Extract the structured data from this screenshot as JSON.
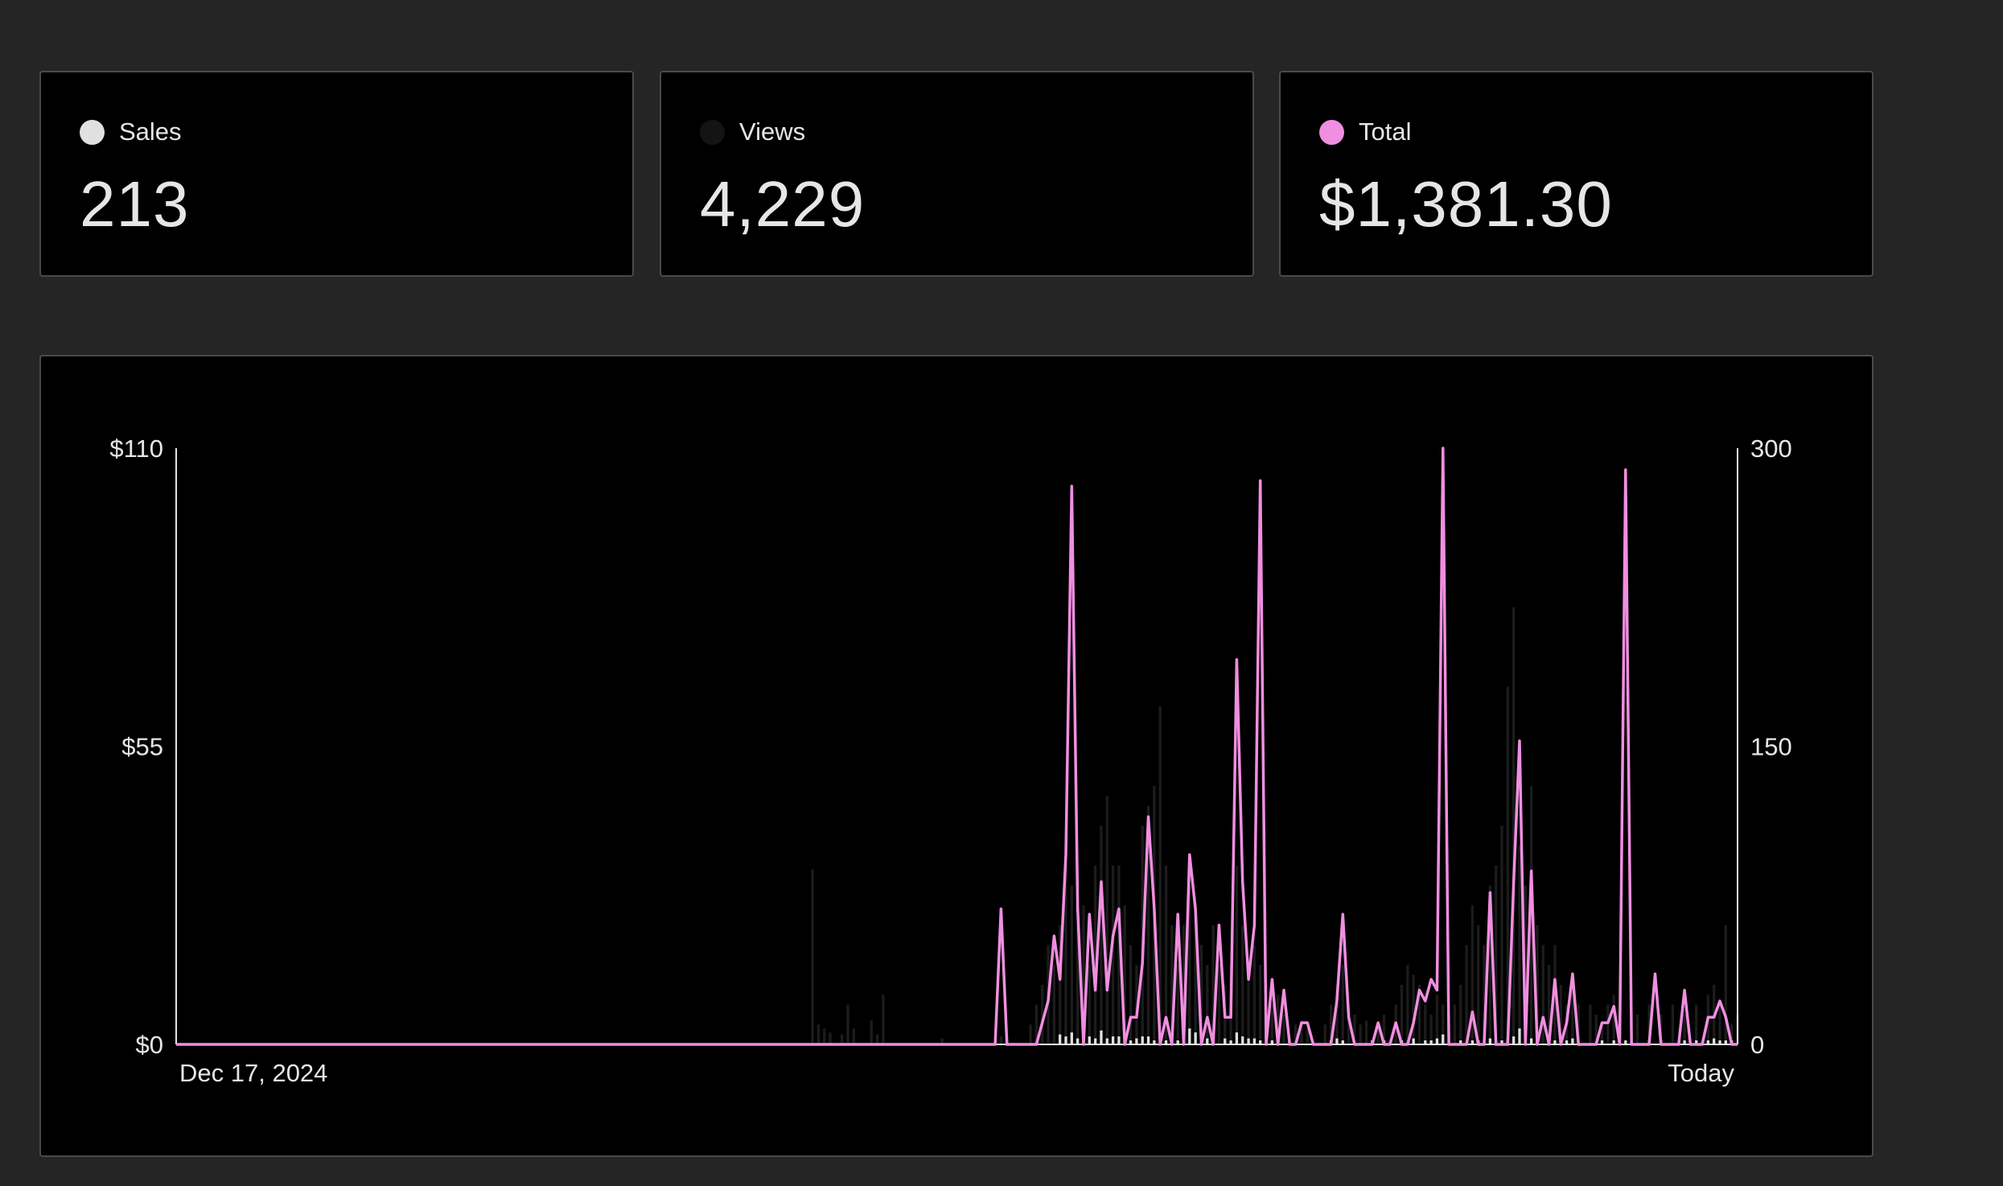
{
  "stats": [
    {
      "label": "Sales",
      "value": "213",
      "color": "#e0e0e0"
    },
    {
      "label": "Views",
      "value": "4,229",
      "color": "#141414"
    },
    {
      "label": "Total",
      "value": "$1,381.30",
      "color": "#f08ee0"
    }
  ],
  "chart_data": {
    "type": "line",
    "x_start_label": "Dec 17, 2024",
    "x_end_label": "Today",
    "points": 266,
    "left_axis": {
      "ticks": [
        "$0",
        "$55",
        "$110"
      ],
      "ylim": [
        0,
        110
      ],
      "grid": false
    },
    "right_axis": {
      "ticks": [
        "0",
        "150",
        "300"
      ],
      "ylim": [
        0,
        300
      ],
      "grid": false
    },
    "series": [
      {
        "name": "Total",
        "axis": "left",
        "kind": "line",
        "color": "#f08ee0",
        "points": [
          [
            0,
            0
          ],
          [
            139,
            0
          ],
          [
            140,
            25
          ],
          [
            141,
            0
          ],
          [
            146,
            0
          ],
          [
            148,
            8
          ],
          [
            149,
            20
          ],
          [
            150,
            12
          ],
          [
            151,
            35
          ],
          [
            152,
            103
          ],
          [
            153,
            25
          ],
          [
            154,
            0
          ],
          [
            155,
            24
          ],
          [
            156,
            10
          ],
          [
            157,
            30
          ],
          [
            158,
            10
          ],
          [
            159,
            20
          ],
          [
            160,
            25
          ],
          [
            161,
            0
          ],
          [
            162,
            5
          ],
          [
            163,
            5
          ],
          [
            164,
            15
          ],
          [
            165,
            42
          ],
          [
            166,
            25
          ],
          [
            167,
            0
          ],
          [
            168,
            5
          ],
          [
            169,
            0
          ],
          [
            170,
            24
          ],
          [
            171,
            0
          ],
          [
            172,
            35
          ],
          [
            173,
            25
          ],
          [
            174,
            0
          ],
          [
            175,
            5
          ],
          [
            176,
            0
          ],
          [
            177,
            22
          ],
          [
            178,
            5
          ],
          [
            179,
            5
          ],
          [
            180,
            71
          ],
          [
            181,
            30
          ],
          [
            182,
            12
          ],
          [
            183,
            22
          ],
          [
            184,
            104
          ],
          [
            185,
            0
          ],
          [
            186,
            12
          ],
          [
            187,
            0
          ],
          [
            188,
            10
          ],
          [
            189,
            0
          ],
          [
            190,
            0
          ],
          [
            191,
            4
          ],
          [
            192,
            4
          ],
          [
            193,
            0
          ],
          [
            196,
            0
          ],
          [
            197,
            8
          ],
          [
            198,
            24
          ],
          [
            199,
            5
          ],
          [
            200,
            0
          ],
          [
            203,
            0
          ],
          [
            204,
            4
          ],
          [
            205,
            0
          ],
          [
            206,
            0
          ],
          [
            207,
            4
          ],
          [
            208,
            0
          ],
          [
            209,
            0
          ],
          [
            210,
            4
          ],
          [
            211,
            10
          ],
          [
            212,
            8
          ],
          [
            213,
            12
          ],
          [
            214,
            10
          ],
          [
            215,
            110
          ],
          [
            216,
            0
          ],
          [
            219,
            0
          ],
          [
            220,
            6
          ],
          [
            221,
            0
          ],
          [
            222,
            0
          ],
          [
            223,
            28
          ],
          [
            224,
            0
          ],
          [
            226,
            0
          ],
          [
            227,
            30
          ],
          [
            228,
            56
          ],
          [
            229,
            0
          ],
          [
            230,
            32
          ],
          [
            231,
            0
          ],
          [
            232,
            5
          ],
          [
            233,
            0
          ],
          [
            234,
            12
          ],
          [
            235,
            0
          ],
          [
            236,
            4
          ],
          [
            237,
            13
          ],
          [
            238,
            0
          ],
          [
            241,
            0
          ],
          [
            242,
            4
          ],
          [
            243,
            4
          ],
          [
            244,
            7
          ],
          [
            245,
            0
          ],
          [
            246,
            106
          ],
          [
            247,
            0
          ],
          [
            250,
            0
          ],
          [
            251,
            13
          ],
          [
            252,
            0
          ],
          [
            255,
            0
          ],
          [
            256,
            10
          ],
          [
            257,
            0
          ],
          [
            259,
            0
          ],
          [
            260,
            5
          ],
          [
            261,
            5
          ],
          [
            262,
            8
          ],
          [
            263,
            5
          ],
          [
            264,
            0
          ],
          [
            265,
            0
          ]
        ]
      },
      {
        "name": "Sales",
        "axis": "right",
        "kind": "bar",
        "color": "#e0e0e0",
        "points": [
          [
            150,
            5
          ],
          [
            151,
            4
          ],
          [
            152,
            6
          ],
          [
            153,
            3
          ],
          [
            154,
            3
          ],
          [
            155,
            4
          ],
          [
            156,
            3
          ],
          [
            157,
            7
          ],
          [
            158,
            3
          ],
          [
            159,
            4
          ],
          [
            160,
            4
          ],
          [
            161,
            3
          ],
          [
            162,
            2
          ],
          [
            163,
            3
          ],
          [
            164,
            4
          ],
          [
            165,
            4
          ],
          [
            166,
            2
          ],
          [
            167,
            3
          ],
          [
            168,
            2
          ],
          [
            170,
            2
          ],
          [
            171,
            3
          ],
          [
            172,
            8
          ],
          [
            173,
            6
          ],
          [
            174,
            2
          ],
          [
            175,
            3
          ],
          [
            176,
            2
          ],
          [
            178,
            3
          ],
          [
            179,
            2
          ],
          [
            180,
            6
          ],
          [
            181,
            4
          ],
          [
            182,
            3
          ],
          [
            183,
            3
          ],
          [
            184,
            2
          ],
          [
            186,
            2
          ],
          [
            187,
            3
          ],
          [
            196,
            2
          ],
          [
            197,
            3
          ],
          [
            198,
            2
          ],
          [
            203,
            2
          ],
          [
            205,
            2
          ],
          [
            208,
            2
          ],
          [
            210,
            3
          ],
          [
            212,
            2
          ],
          [
            213,
            2
          ],
          [
            214,
            3
          ],
          [
            215,
            5
          ],
          [
            218,
            2
          ],
          [
            220,
            2
          ],
          [
            221,
            2
          ],
          [
            223,
            3
          ],
          [
            225,
            2
          ],
          [
            226,
            3
          ],
          [
            227,
            4
          ],
          [
            228,
            8
          ],
          [
            229,
            2
          ],
          [
            230,
            3
          ],
          [
            231,
            2
          ],
          [
            233,
            2
          ],
          [
            234,
            2
          ],
          [
            236,
            2
          ],
          [
            237,
            3
          ],
          [
            242,
            2
          ],
          [
            244,
            2
          ],
          [
            246,
            2
          ],
          [
            250,
            2
          ],
          [
            252,
            2
          ],
          [
            256,
            2
          ],
          [
            258,
            2
          ],
          [
            260,
            2
          ],
          [
            261,
            3
          ],
          [
            262,
            2
          ],
          [
            263,
            2
          ],
          [
            264,
            2
          ]
        ]
      },
      {
        "name": "Views",
        "axis": "right",
        "kind": "bar",
        "color": "#1c1c1c",
        "points": [
          [
            108,
            88
          ],
          [
            109,
            10
          ],
          [
            110,
            8
          ],
          [
            111,
            6
          ],
          [
            113,
            5
          ],
          [
            114,
            20
          ],
          [
            115,
            8
          ],
          [
            118,
            12
          ],
          [
            119,
            5
          ],
          [
            120,
            25
          ],
          [
            130,
            3
          ],
          [
            140,
            4
          ],
          [
            145,
            10
          ],
          [
            146,
            20
          ],
          [
            147,
            30
          ],
          [
            148,
            50
          ],
          [
            149,
            40
          ],
          [
            150,
            60
          ],
          [
            151,
            90
          ],
          [
            152,
            80
          ],
          [
            153,
            60
          ],
          [
            154,
            70
          ],
          [
            155,
            40
          ],
          [
            156,
            90
          ],
          [
            157,
            110
          ],
          [
            158,
            125
          ],
          [
            159,
            90
          ],
          [
            160,
            90
          ],
          [
            161,
            70
          ],
          [
            162,
            50
          ],
          [
            163,
            40
          ],
          [
            164,
            110
          ],
          [
            165,
            120
          ],
          [
            166,
            130
          ],
          [
            167,
            170
          ],
          [
            168,
            90
          ],
          [
            169,
            60
          ],
          [
            170,
            40
          ],
          [
            171,
            60
          ],
          [
            172,
            80
          ],
          [
            173,
            70
          ],
          [
            174,
            50
          ],
          [
            175,
            40
          ],
          [
            176,
            60
          ],
          [
            177,
            40
          ],
          [
            178,
            30
          ],
          [
            179,
            40
          ],
          [
            180,
            90
          ],
          [
            181,
            60
          ],
          [
            182,
            40
          ],
          [
            183,
            50
          ],
          [
            184,
            40
          ],
          [
            185,
            30
          ],
          [
            186,
            20
          ],
          [
            187,
            25
          ],
          [
            188,
            15
          ],
          [
            190,
            10
          ],
          [
            191,
            12
          ],
          [
            192,
            8
          ],
          [
            195,
            10
          ],
          [
            196,
            20
          ],
          [
            197,
            30
          ],
          [
            198,
            40
          ],
          [
            199,
            20
          ],
          [
            200,
            15
          ],
          [
            201,
            10
          ],
          [
            202,
            12
          ],
          [
            204,
            10
          ],
          [
            205,
            15
          ],
          [
            207,
            20
          ],
          [
            208,
            30
          ],
          [
            209,
            40
          ],
          [
            210,
            35
          ],
          [
            211,
            30
          ],
          [
            212,
            20
          ],
          [
            213,
            15
          ],
          [
            214,
            25
          ],
          [
            215,
            20
          ],
          [
            216,
            15
          ],
          [
            217,
            20
          ],
          [
            218,
            30
          ],
          [
            219,
            50
          ],
          [
            220,
            70
          ],
          [
            221,
            60
          ],
          [
            222,
            50
          ],
          [
            223,
            80
          ],
          [
            224,
            90
          ],
          [
            225,
            110
          ],
          [
            226,
            180
          ],
          [
            227,
            220
          ],
          [
            228,
            100
          ],
          [
            229,
            80
          ],
          [
            230,
            130
          ],
          [
            231,
            60
          ],
          [
            232,
            50
          ],
          [
            233,
            40
          ],
          [
            234,
            50
          ],
          [
            235,
            30
          ],
          [
            236,
            20
          ],
          [
            237,
            30
          ],
          [
            238,
            20
          ],
          [
            240,
            20
          ],
          [
            241,
            15
          ],
          [
            242,
            10
          ],
          [
            243,
            20
          ],
          [
            244,
            25
          ],
          [
            245,
            15
          ],
          [
            248,
            15
          ],
          [
            250,
            20
          ],
          [
            252,
            15
          ],
          [
            254,
            20
          ],
          [
            256,
            15
          ],
          [
            258,
            20
          ],
          [
            260,
            25
          ],
          [
            261,
            30
          ],
          [
            262,
            20
          ],
          [
            263,
            60
          ],
          [
            264,
            10
          ],
          [
            265,
            15
          ]
        ]
      }
    ]
  }
}
